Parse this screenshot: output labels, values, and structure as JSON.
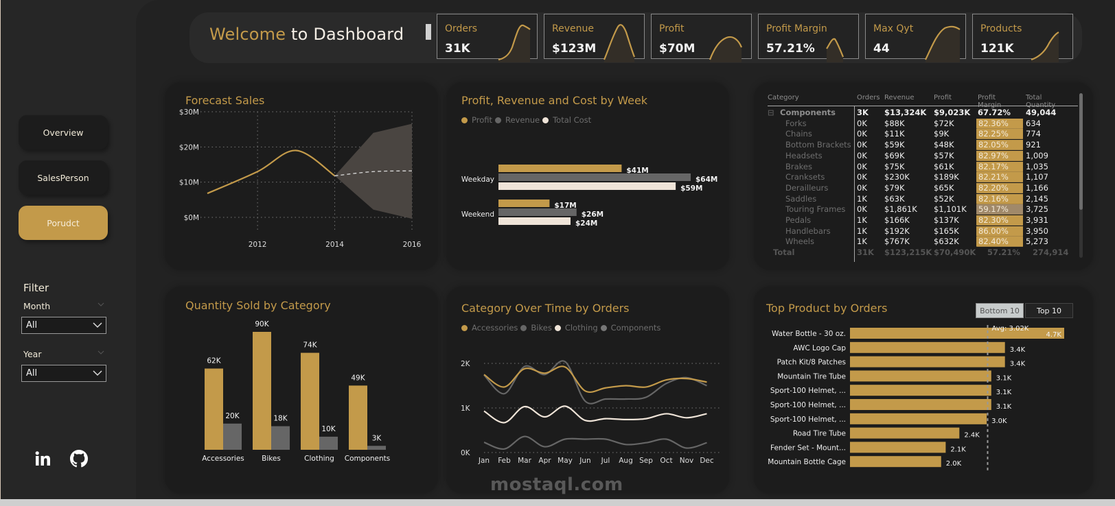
{
  "header": {
    "welcome_highlight": "Welcome",
    "welcome_rest": " to Dashboard"
  },
  "kpis": [
    {
      "label": "Orders",
      "value": "31K"
    },
    {
      "label": "Revenue",
      "value": "$123M"
    },
    {
      "label": "Profit",
      "value": "$70M"
    },
    {
      "label": "Profit Margin",
      "value": "57.21%"
    },
    {
      "label": "Max Qyt",
      "value": "44"
    },
    {
      "label": "Products",
      "value": "121K"
    }
  ],
  "sidebar": {
    "nav": [
      {
        "label": "Overview",
        "active": false
      },
      {
        "label": "SalesPerson",
        "active": false
      },
      {
        "label": "Porudct",
        "active": true
      }
    ],
    "filter_title": "Filter",
    "filters": [
      {
        "label": "Month",
        "value": "All"
      },
      {
        "label": "Year",
        "value": "All"
      }
    ],
    "social": [
      "linkedin-icon",
      "github-icon"
    ]
  },
  "colors": {
    "accent": "#c39a4a",
    "gray": "#666666",
    "cream": "#efe4d8",
    "card": "#1c1c1c",
    "background": "#222222"
  },
  "chart_data": [
    {
      "id": "forecast",
      "type": "line",
      "title": "Forecast Sales",
      "y_ticks": [
        "$0M",
        "$10M",
        "$20M",
        "$30M"
      ],
      "ylim": [
        0,
        30
      ],
      "x_ticks": [
        "2012",
        "2014",
        "2016"
      ],
      "xlim": [
        2010.7,
        2016
      ],
      "actual": [
        {
          "x": 2010.7,
          "y": 6.8
        },
        {
          "x": 2012,
          "y": 13
        },
        {
          "x": 2013,
          "y": 19
        },
        {
          "x": 2014,
          "y": 11.8
        }
      ],
      "forecast": [
        {
          "x": 2014,
          "y": 11.8
        },
        {
          "x": 2015,
          "y": 13
        },
        {
          "x": 2016,
          "y": 13.2
        }
      ],
      "upper": [
        {
          "x": 2014,
          "y": 11.8
        },
        {
          "x": 2015,
          "y": 24
        },
        {
          "x": 2016,
          "y": 26.6
        }
      ],
      "lower": [
        {
          "x": 2014,
          "y": 11.8
        },
        {
          "x": 2015,
          "y": 2.2
        },
        {
          "x": 2016,
          "y": -0.4
        }
      ],
      "units": "$M"
    },
    {
      "id": "week",
      "type": "bar",
      "orientation": "horizontal",
      "title": "Profit, Revenue and Cost by Week",
      "legend": [
        "Profit",
        "Revenue",
        "Total Cost"
      ],
      "categories": [
        "Weekday",
        "Weekend"
      ],
      "series": [
        {
          "name": "Profit",
          "values": [
            41,
            17
          ],
          "labels": [
            "$41M",
            "$17M"
          ]
        },
        {
          "name": "Revenue",
          "values": [
            64,
            26
          ],
          "labels": [
            "$64M",
            "$26M"
          ]
        },
        {
          "name": "Total Cost",
          "values": [
            59,
            24
          ],
          "labels": [
            "$59M",
            "$24M"
          ]
        }
      ],
      "xlim": [
        0,
        64
      ]
    },
    {
      "id": "quantity",
      "type": "bar",
      "title": "Quantity Sold by Category",
      "categories": [
        "Accessories",
        "Bikes",
        "Clothing",
        "Components"
      ],
      "series": [
        {
          "name": "Series 1",
          "values": [
            62,
            90,
            74,
            49
          ],
          "labels": [
            "62K",
            "90K",
            "74K",
            "49K"
          ]
        },
        {
          "name": "Series 2",
          "values": [
            20,
            18,
            10,
            3
          ],
          "labels": [
            "20K",
            "18K",
            "10K",
            "3K"
          ]
        }
      ],
      "ylim": [
        0,
        90
      ]
    },
    {
      "id": "category_time",
      "type": "line",
      "title": "Category Over Time by Orders",
      "legend": [
        "Accessories",
        "Bikes",
        "Clothing",
        "Components"
      ],
      "x": [
        "Jan",
        "Feb",
        "Mar",
        "Apr",
        "May",
        "Jun",
        "Jul",
        "Aug",
        "Sep",
        "Oct",
        "Nov",
        "Dec"
      ],
      "y_ticks": [
        "0K",
        "1K",
        "2K"
      ],
      "ylim": [
        0,
        2
      ],
      "series": [
        {
          "name": "Accessories",
          "values": [
            1.75,
            1.47,
            1.88,
            1.78,
            1.92,
            1.38,
            1.45,
            1.5,
            1.47,
            1.63,
            1.66,
            1.58
          ]
        },
        {
          "name": "Bikes",
          "values": [
            1.74,
            1.32,
            1.93,
            1.75,
            2.04,
            1.15,
            1.2,
            1.2,
            1.24,
            1.55,
            1.68,
            1.5
          ]
        },
        {
          "name": "Clothing",
          "values": [
            0.93,
            0.67,
            1.03,
            0.8,
            1.04,
            0.72,
            0.76,
            0.74,
            0.76,
            0.87,
            0.78,
            0.87
          ]
        },
        {
          "name": "Components",
          "values": [
            0.23,
            0.08,
            0.36,
            0.13,
            0.3,
            0.3,
            0.3,
            0.18,
            0.22,
            0.3,
            0.1,
            0.22
          ]
        }
      ]
    },
    {
      "id": "top_products",
      "type": "bar",
      "orientation": "horizontal",
      "title": "Top Product by Orders",
      "categories": [
        "Water Bottle - 30 oz.",
        "AWC Logo Cap",
        "Patch Kit/8 Patches",
        "Mountain Tire Tube",
        "Sport-100 Helmet, ...",
        "Sport-100 Helmet, ...",
        "Sport-100 Helmet, ...",
        "Road Tire Tube",
        "Fender Set - Mount...",
        "Mountain Bottle Cage"
      ],
      "values": [
        4.7,
        3.4,
        3.4,
        3.1,
        3.1,
        3.1,
        3.0,
        2.4,
        2.1,
        2.0
      ],
      "labels": [
        "4.7K",
        "3.4K",
        "3.4K",
        "3.1K",
        "3.1K",
        "3.1K",
        "3.0K",
        "2.4K",
        "2.1K",
        "2.0K"
      ],
      "average": 3.02,
      "average_label": "Avg: 3.02K",
      "xlim": [
        0,
        4.7
      ]
    }
  ],
  "top_products_toggle": {
    "bottom": "Bottom 10",
    "top": "Top 10",
    "active": "bottom"
  },
  "table": {
    "headers": [
      "Category",
      "Orders",
      "Revenue",
      "Profit",
      "Profit Margin",
      "Total Quantity"
    ],
    "group": {
      "name": "Components",
      "orders": "3K",
      "revenue": "$13,324K",
      "profit": "$9,023K",
      "margin": "67.72%",
      "qty": "49,044"
    },
    "rows": [
      {
        "name": "Forks",
        "orders": "0K",
        "revenue": "$88K",
        "profit": "$72K",
        "margin": "82.36%",
        "qty": "634"
      },
      {
        "name": "Chains",
        "orders": "0K",
        "revenue": "$11K",
        "profit": "$9K",
        "margin": "82.25%",
        "qty": "774"
      },
      {
        "name": "Bottom Brackets",
        "orders": "0K",
        "revenue": "$59K",
        "profit": "$48K",
        "margin": "82.05%",
        "qty": "921"
      },
      {
        "name": "Headsets",
        "orders": "0K",
        "revenue": "$69K",
        "profit": "$57K",
        "margin": "82.97%",
        "qty": "1,009"
      },
      {
        "name": "Brakes",
        "orders": "0K",
        "revenue": "$75K",
        "profit": "$61K",
        "margin": "82.17%",
        "qty": "1,035"
      },
      {
        "name": "Cranksets",
        "orders": "0K",
        "revenue": "$230K",
        "profit": "$189K",
        "margin": "82.21%",
        "qty": "1,107"
      },
      {
        "name": "Derailleurs",
        "orders": "0K",
        "revenue": "$79K",
        "profit": "$65K",
        "margin": "82.20%",
        "qty": "1,166"
      },
      {
        "name": "Saddles",
        "orders": "1K",
        "revenue": "$63K",
        "profit": "$52K",
        "margin": "82.16%",
        "qty": "2,145"
      },
      {
        "name": "Touring Frames",
        "orders": "0K",
        "revenue": "$1,861K",
        "profit": "$1,101K",
        "margin": "59.17%",
        "qty": "3,725"
      },
      {
        "name": "Pedals",
        "orders": "1K",
        "revenue": "$166K",
        "profit": "$137K",
        "margin": "82.30%",
        "qty": "3,931"
      },
      {
        "name": "Handlebars",
        "orders": "1K",
        "revenue": "$192K",
        "profit": "$165K",
        "margin": "86.00%",
        "qty": "3,950"
      },
      {
        "name": "Wheels",
        "orders": "1K",
        "revenue": "$767K",
        "profit": "$632K",
        "margin": "82.40%",
        "qty": "5,273"
      }
    ],
    "total": {
      "name": "Total",
      "orders": "31K",
      "revenue": "$123,215K",
      "profit": "$70,490K",
      "margin": "57.21%",
      "qty": "274,914"
    }
  },
  "watermark": "mostaql.com"
}
